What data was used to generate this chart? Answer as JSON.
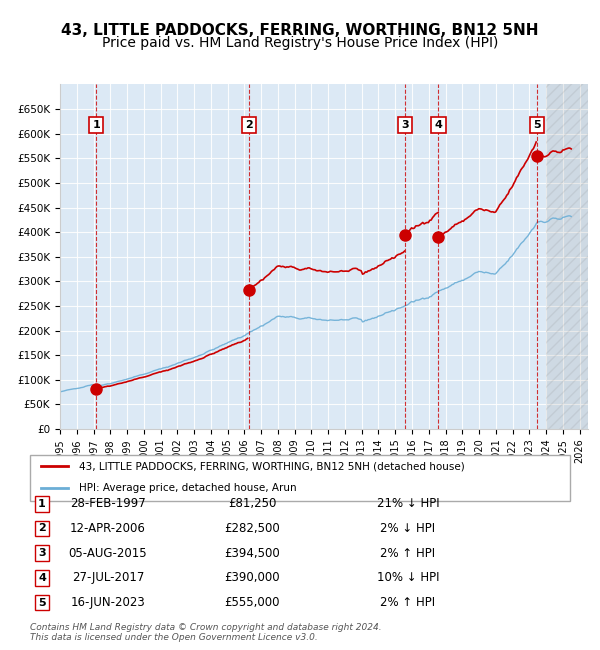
{
  "title": "43, LITTLE PADDOCKS, FERRING, WORTHING, BN12 5NH",
  "subtitle": "Price paid vs. HM Land Registry's House Price Index (HPI)",
  "ylabel": "",
  "background_color": "#dce9f5",
  "plot_bg_color": "#dce9f5",
  "ylim": [
    0,
    700000
  ],
  "yticks": [
    0,
    50000,
    100000,
    150000,
    200000,
    250000,
    300000,
    350000,
    400000,
    450000,
    500000,
    550000,
    600000,
    650000
  ],
  "xlim_start": 1995.5,
  "xlim_end": 2026.5,
  "xticks": [
    1995,
    1996,
    1997,
    1998,
    1999,
    2000,
    2001,
    2002,
    2003,
    2004,
    2005,
    2006,
    2007,
    2008,
    2009,
    2010,
    2011,
    2012,
    2013,
    2014,
    2015,
    2016,
    2017,
    2018,
    2019,
    2020,
    2021,
    2022,
    2023,
    2024,
    2025,
    2026
  ],
  "sale_dates": [
    1997.16,
    2006.28,
    2015.59,
    2017.57,
    2023.46
  ],
  "sale_prices": [
    81250,
    282500,
    394500,
    390000,
    555000
  ],
  "sale_labels": [
    "1",
    "2",
    "3",
    "4",
    "5"
  ],
  "hpi_color": "#6baed6",
  "price_color": "#cc0000",
  "sale_marker_color": "#cc0000",
  "vline_color": "#cc0000",
  "vline_last_color": "#aaaaaa",
  "legend_items": [
    {
      "label": "43, LITTLE PADDOCKS, FERRING, WORTHING, BN12 5NH (detached house)",
      "color": "#cc0000"
    },
    {
      "label": "HPI: Average price, detached house, Arun",
      "color": "#6baed6"
    }
  ],
  "table_rows": [
    {
      "num": "1",
      "date": "28-FEB-1997",
      "price": "£81,250",
      "hpi": "21% ↓ HPI"
    },
    {
      "num": "2",
      "date": "12-APR-2006",
      "price": "£282,500",
      "hpi": "2% ↓ HPI"
    },
    {
      "num": "3",
      "date": "05-AUG-2015",
      "price": "£394,500",
      "hpi": "2% ↑ HPI"
    },
    {
      "num": "4",
      "date": "27-JUL-2017",
      "price": "£390,000",
      "hpi": "10% ↓ HPI"
    },
    {
      "num": "5",
      "date": "16-JUN-2023",
      "price": "£555,000",
      "hpi": "2% ↑ HPI"
    }
  ],
  "footer": "Contains HM Land Registry data © Crown copyright and database right 2024.\nThis data is licensed under the Open Government Licence v3.0.",
  "title_fontsize": 11,
  "subtitle_fontsize": 10
}
